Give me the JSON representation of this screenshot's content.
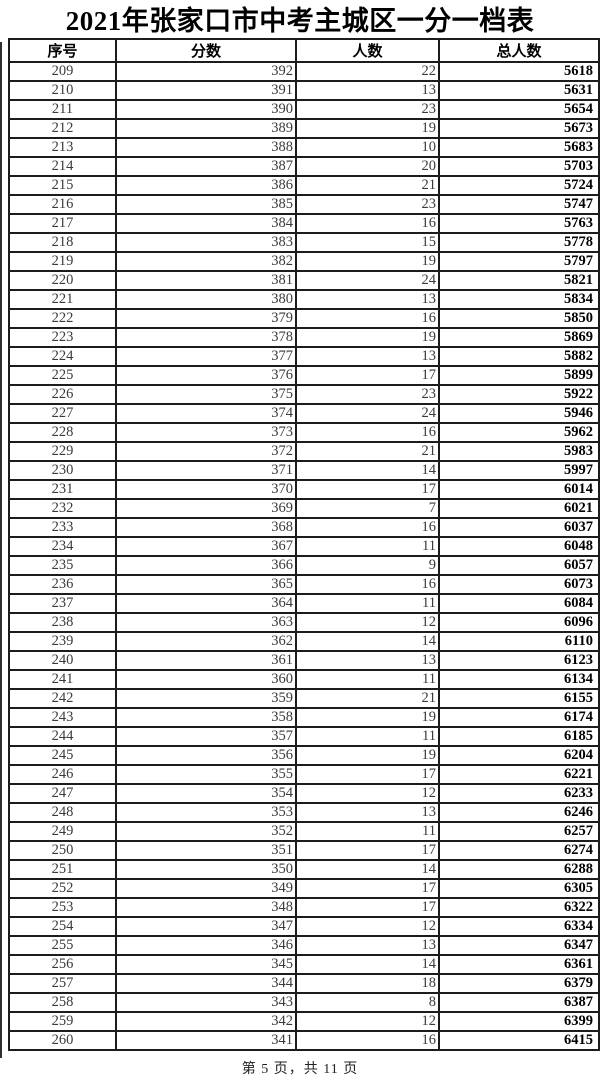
{
  "page": {
    "title": "2021年张家口市中考主城区一分一档表",
    "footer": "第 5 页，共 11 页"
  },
  "colors": {
    "background": "#ffffff",
    "border": "#1c1c1c",
    "body_text": "#3a3a3a",
    "emphasis_text": "#000000"
  },
  "table": {
    "headers": [
      "序号",
      "分数",
      "人数",
      "总人数"
    ],
    "rows": [
      [
        209,
        392,
        22,
        5618
      ],
      [
        210,
        391,
        13,
        5631
      ],
      [
        211,
        390,
        23,
        5654
      ],
      [
        212,
        389,
        19,
        5673
      ],
      [
        213,
        388,
        10,
        5683
      ],
      [
        214,
        387,
        20,
        5703
      ],
      [
        215,
        386,
        21,
        5724
      ],
      [
        216,
        385,
        23,
        5747
      ],
      [
        217,
        384,
        16,
        5763
      ],
      [
        218,
        383,
        15,
        5778
      ],
      [
        219,
        382,
        19,
        5797
      ],
      [
        220,
        381,
        24,
        5821
      ],
      [
        221,
        380,
        13,
        5834
      ],
      [
        222,
        379,
        16,
        5850
      ],
      [
        223,
        378,
        19,
        5869
      ],
      [
        224,
        377,
        13,
        5882
      ],
      [
        225,
        376,
        17,
        5899
      ],
      [
        226,
        375,
        23,
        5922
      ],
      [
        227,
        374,
        24,
        5946
      ],
      [
        228,
        373,
        16,
        5962
      ],
      [
        229,
        372,
        21,
        5983
      ],
      [
        230,
        371,
        14,
        5997
      ],
      [
        231,
        370,
        17,
        6014
      ],
      [
        232,
        369,
        7,
        6021
      ],
      [
        233,
        368,
        16,
        6037
      ],
      [
        234,
        367,
        11,
        6048
      ],
      [
        235,
        366,
        9,
        6057
      ],
      [
        236,
        365,
        16,
        6073
      ],
      [
        237,
        364,
        11,
        6084
      ],
      [
        238,
        363,
        12,
        6096
      ],
      [
        239,
        362,
        14,
        6110
      ],
      [
        240,
        361,
        13,
        6123
      ],
      [
        241,
        360,
        11,
        6134
      ],
      [
        242,
        359,
        21,
        6155
      ],
      [
        243,
        358,
        19,
        6174
      ],
      [
        244,
        357,
        11,
        6185
      ],
      [
        245,
        356,
        19,
        6204
      ],
      [
        246,
        355,
        17,
        6221
      ],
      [
        247,
        354,
        12,
        6233
      ],
      [
        248,
        353,
        13,
        6246
      ],
      [
        249,
        352,
        11,
        6257
      ],
      [
        250,
        351,
        17,
        6274
      ],
      [
        251,
        350,
        14,
        6288
      ],
      [
        252,
        349,
        17,
        6305
      ],
      [
        253,
        348,
        17,
        6322
      ],
      [
        254,
        347,
        12,
        6334
      ],
      [
        255,
        346,
        13,
        6347
      ],
      [
        256,
        345,
        14,
        6361
      ],
      [
        257,
        344,
        18,
        6379
      ],
      [
        258,
        343,
        8,
        6387
      ],
      [
        259,
        342,
        12,
        6399
      ],
      [
        260,
        341,
        16,
        6415
      ]
    ]
  }
}
